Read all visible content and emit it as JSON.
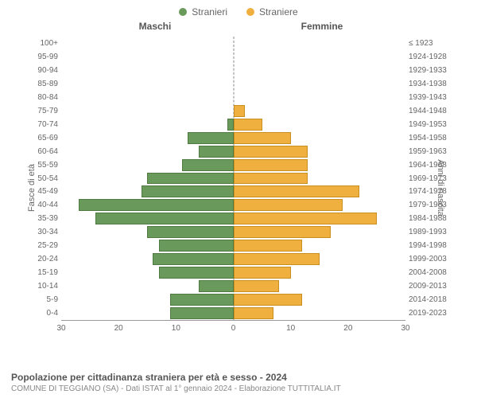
{
  "legend": {
    "male": {
      "label": "Stranieri",
      "color": "#6a9a5b"
    },
    "female": {
      "label": "Straniere",
      "color": "#f0b040"
    }
  },
  "headers": {
    "left": "Maschi",
    "right": "Femmine"
  },
  "axis_titles": {
    "left": "Fasce di età",
    "right": "Anni di nascita"
  },
  "chart": {
    "type": "population-pyramid",
    "x_max": 30,
    "x_ticks_left": [
      30,
      20,
      10,
      0
    ],
    "x_ticks_right": [
      0,
      10,
      20,
      30
    ],
    "male_color": "#6a9a5b",
    "female_color": "#f0b040",
    "male_border": "#4f7a42",
    "female_border": "#c88e20",
    "background_color": "#ffffff",
    "label_fontsize": 10,
    "rows": [
      {
        "age": "100+",
        "birth": "≤ 1923",
        "m": 0,
        "f": 0
      },
      {
        "age": "95-99",
        "birth": "1924-1928",
        "m": 0,
        "f": 0
      },
      {
        "age": "90-94",
        "birth": "1929-1933",
        "m": 0,
        "f": 0
      },
      {
        "age": "85-89",
        "birth": "1934-1938",
        "m": 0,
        "f": 0
      },
      {
        "age": "80-84",
        "birth": "1939-1943",
        "m": 0,
        "f": 0
      },
      {
        "age": "75-79",
        "birth": "1944-1948",
        "m": 0,
        "f": 2
      },
      {
        "age": "70-74",
        "birth": "1949-1953",
        "m": 1,
        "f": 5
      },
      {
        "age": "65-69",
        "birth": "1954-1958",
        "m": 8,
        "f": 10
      },
      {
        "age": "60-64",
        "birth": "1959-1963",
        "m": 6,
        "f": 13
      },
      {
        "age": "55-59",
        "birth": "1964-1968",
        "m": 9,
        "f": 13
      },
      {
        "age": "50-54",
        "birth": "1969-1973",
        "m": 15,
        "f": 13
      },
      {
        "age": "45-49",
        "birth": "1974-1978",
        "m": 16,
        "f": 22
      },
      {
        "age": "40-44",
        "birth": "1979-1983",
        "m": 27,
        "f": 19
      },
      {
        "age": "35-39",
        "birth": "1984-1988",
        "m": 24,
        "f": 25
      },
      {
        "age": "30-34",
        "birth": "1989-1993",
        "m": 15,
        "f": 17
      },
      {
        "age": "25-29",
        "birth": "1994-1998",
        "m": 13,
        "f": 12
      },
      {
        "age": "20-24",
        "birth": "1999-2003",
        "m": 14,
        "f": 15
      },
      {
        "age": "15-19",
        "birth": "2004-2008",
        "m": 13,
        "f": 10
      },
      {
        "age": "10-14",
        "birth": "2009-2013",
        "m": 6,
        "f": 8
      },
      {
        "age": "5-9",
        "birth": "2014-2018",
        "m": 11,
        "f": 12
      },
      {
        "age": "0-4",
        "birth": "2019-2023",
        "m": 11,
        "f": 7
      }
    ]
  },
  "footer": {
    "title": "Popolazione per cittadinanza straniera per età e sesso - 2024",
    "subtitle": "COMUNE DI TEGGIANO (SA) - Dati ISTAT al 1° gennaio 2024 - Elaborazione TUTTITALIA.IT"
  }
}
